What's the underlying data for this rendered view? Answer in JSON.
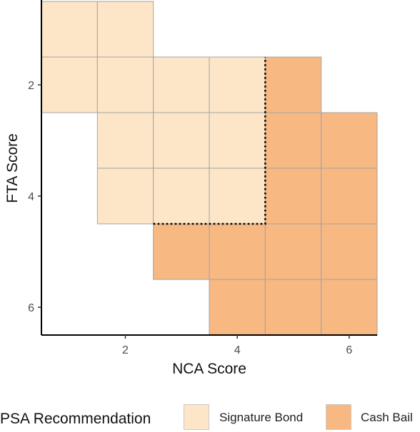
{
  "chart_data": {
    "type": "heatmap",
    "xlabel": "NCA Score",
    "ylabel": "FTA Score",
    "x_ticks": [
      2,
      4,
      6
    ],
    "y_ticks": [
      2,
      4,
      6
    ],
    "xlim": [
      0.5,
      6.5
    ],
    "ylim": [
      0.5,
      6.5
    ],
    "y_reversed": true,
    "legend_title": "PSA Recommendation",
    "legend_position": "bottom",
    "categories": [
      {
        "name": "Signature Bond",
        "color": "#fde6c7"
      },
      {
        "name": "Cash Bail",
        "color": "#f8b882"
      }
    ],
    "cells": [
      {
        "x": 1,
        "y": 1,
        "rec": "Signature Bond"
      },
      {
        "x": 2,
        "y": 1,
        "rec": "Signature Bond"
      },
      {
        "x": 1,
        "y": 2,
        "rec": "Signature Bond"
      },
      {
        "x": 2,
        "y": 2,
        "rec": "Signature Bond"
      },
      {
        "x": 3,
        "y": 2,
        "rec": "Signature Bond"
      },
      {
        "x": 4,
        "y": 2,
        "rec": "Signature Bond"
      },
      {
        "x": 5,
        "y": 2,
        "rec": "Cash Bail"
      },
      {
        "x": 2,
        "y": 3,
        "rec": "Signature Bond"
      },
      {
        "x": 3,
        "y": 3,
        "rec": "Signature Bond"
      },
      {
        "x": 4,
        "y": 3,
        "rec": "Signature Bond"
      },
      {
        "x": 5,
        "y": 3,
        "rec": "Cash Bail"
      },
      {
        "x": 6,
        "y": 3,
        "rec": "Cash Bail"
      },
      {
        "x": 2,
        "y": 4,
        "rec": "Signature Bond"
      },
      {
        "x": 3,
        "y": 4,
        "rec": "Signature Bond"
      },
      {
        "x": 4,
        "y": 4,
        "rec": "Signature Bond"
      },
      {
        "x": 5,
        "y": 4,
        "rec": "Cash Bail"
      },
      {
        "x": 6,
        "y": 4,
        "rec": "Cash Bail"
      },
      {
        "x": 3,
        "y": 5,
        "rec": "Cash Bail"
      },
      {
        "x": 4,
        "y": 5,
        "rec": "Cash Bail"
      },
      {
        "x": 5,
        "y": 5,
        "rec": "Cash Bail"
      },
      {
        "x": 6,
        "y": 5,
        "rec": "Cash Bail"
      },
      {
        "x": 4,
        "y": 6,
        "rec": "Cash Bail"
      },
      {
        "x": 5,
        "y": 6,
        "rec": "Cash Bail"
      },
      {
        "x": 6,
        "y": 6,
        "rec": "Cash Bail"
      }
    ],
    "threshold_line": [
      [
        2.5,
        4.5
      ],
      [
        4.5,
        4.5
      ],
      [
        4.5,
        1.5
      ]
    ],
    "grid": false
  }
}
